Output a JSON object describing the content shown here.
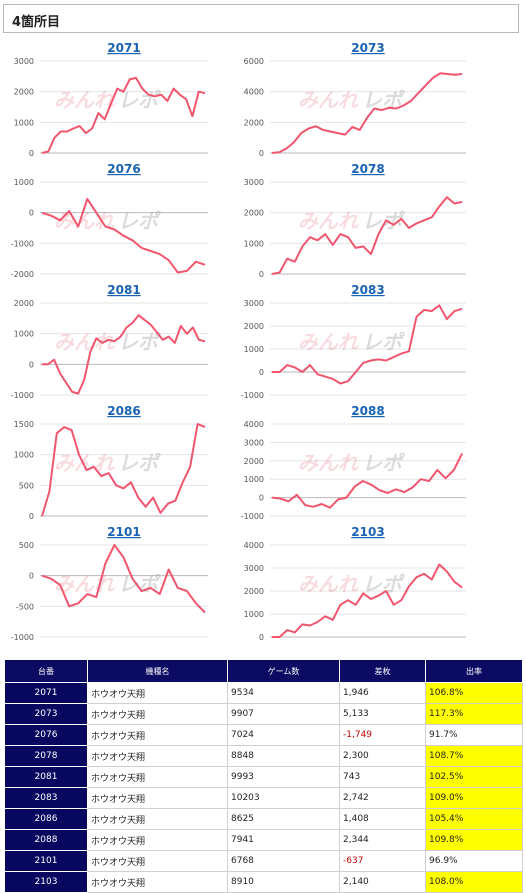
{
  "page": {
    "title": "4箇所目"
  },
  "chart_data": [
    {
      "type": "line",
      "title": "2071",
      "ylim": [
        0,
        3000
      ],
      "yticks": [
        "0",
        "1000",
        "2000",
        "3000"
      ],
      "values": [
        0,
        50,
        500,
        700,
        700,
        800,
        880,
        650,
        800,
        1300,
        1100,
        1600,
        2100,
        2000,
        2400,
        2450,
        2100,
        1900,
        1850,
        1900,
        1700,
        2100,
        1900,
        1750,
        1200,
        2000,
        1950
      ]
    },
    {
      "type": "line",
      "title": "2073",
      "ylim": [
        0,
        6000
      ],
      "yticks": [
        "0",
        "2000",
        "4000",
        "6000"
      ],
      "values": [
        0,
        50,
        300,
        700,
        1300,
        1600,
        1750,
        1500,
        1400,
        1300,
        1200,
        1700,
        1500,
        2300,
        2900,
        2800,
        2950,
        2900,
        3100,
        3400,
        3900,
        4400,
        4900,
        5200,
        5150,
        5100,
        5150
      ]
    },
    {
      "type": "line",
      "title": "2076",
      "ylim": [
        -2000,
        1000
      ],
      "yticks": [
        "-2000",
        "-1000",
        "0",
        "1000"
      ],
      "values": [
        0,
        -100,
        -250,
        50,
        -450,
        450,
        0,
        -450,
        -550,
        -750,
        -900,
        -1150,
        -1250,
        -1350,
        -1550,
        -1950,
        -1900,
        -1600,
        -1700
      ]
    },
    {
      "type": "line",
      "title": "2078",
      "ylim": [
        0,
        3000
      ],
      "yticks": [
        "0",
        "1000",
        "2000",
        "3000"
      ],
      "values": [
        0,
        50,
        500,
        400,
        900,
        1200,
        1100,
        1300,
        950,
        1300,
        1200,
        850,
        900,
        650,
        1300,
        1750,
        1600,
        1800,
        1500,
        1650,
        1750,
        1850,
        2200,
        2500,
        2300,
        2350
      ]
    },
    {
      "type": "line",
      "title": "2081",
      "ylim": [
        -1000,
        2000
      ],
      "yticks": [
        "-1000",
        "0",
        "1000",
        "2000"
      ],
      "values": [
        0,
        0,
        150,
        -300,
        -600,
        -900,
        -950,
        -500,
        400,
        850,
        700,
        800,
        750,
        900,
        1200,
        1350,
        1600,
        1450,
        1300,
        1050,
        800,
        900,
        700,
        1250,
        1000,
        1200,
        800,
        750
      ]
    },
    {
      "type": "line",
      "title": "2083",
      "ylim": [
        -1000,
        3000
      ],
      "yticks": [
        "-1000",
        "0",
        "1000",
        "2000",
        "3000"
      ],
      "values": [
        0,
        0,
        300,
        200,
        0,
        300,
        -100,
        -200,
        -300,
        -500,
        -400,
        0,
        400,
        500,
        550,
        500,
        650,
        800,
        900,
        2400,
        2700,
        2650,
        2900,
        2300,
        2650,
        2750
      ]
    },
    {
      "type": "line",
      "title": "2086",
      "ylim": [
        0,
        1500
      ],
      "yticks": [
        "0",
        "500",
        "1000",
        "1500"
      ],
      "values": [
        0,
        400,
        1350,
        1450,
        1400,
        1000,
        750,
        800,
        650,
        700,
        500,
        450,
        550,
        300,
        150,
        300,
        50,
        200,
        250,
        550,
        800,
        1500,
        1450
      ]
    },
    {
      "type": "line",
      "title": "2088",
      "ylim": [
        -1000,
        4000
      ],
      "yticks": [
        "-1000",
        "0",
        "1000",
        "2000",
        "3000",
        "4000"
      ],
      "values": [
        0,
        -50,
        -200,
        150,
        -400,
        -500,
        -350,
        -550,
        -100,
        0,
        600,
        900,
        700,
        400,
        250,
        450,
        300,
        550,
        1000,
        900,
        1500,
        1050,
        1500,
        2400
      ]
    },
    {
      "type": "line",
      "title": "2101",
      "ylim": [
        -1000,
        500
      ],
      "yticks": [
        "-1000",
        "-500",
        "0",
        "500"
      ],
      "values": [
        0,
        -50,
        -150,
        -500,
        -450,
        -300,
        -350,
        200,
        500,
        300,
        -50,
        -250,
        -200,
        -300,
        100,
        -200,
        -250,
        -450,
        -600
      ]
    },
    {
      "type": "line",
      "title": "2103",
      "ylim": [
        0,
        4000
      ],
      "yticks": [
        "0",
        "1000",
        "2000",
        "3000",
        "4000"
      ],
      "values": [
        0,
        0,
        300,
        200,
        550,
        500,
        650,
        900,
        750,
        1400,
        1600,
        1400,
        1900,
        1650,
        1800,
        2000,
        1400,
        1600,
        2200,
        2600,
        2750,
        2500,
        3150,
        2850,
        2400,
        2150
      ]
    }
  ],
  "table": {
    "headers": [
      "台番",
      "機種名",
      "ゲーム数",
      "差枚",
      "出率"
    ],
    "rows": [
      [
        "2071",
        "ホウオウ天翔",
        "9534",
        "1,946",
        "106.8%"
      ],
      [
        "2073",
        "ホウオウ天翔",
        "9907",
        "5,133",
        "117.3%"
      ],
      [
        "2076",
        "ホウオウ天翔",
        "7024",
        "-1,749",
        "91.7%"
      ],
      [
        "2078",
        "ホウオウ天翔",
        "8848",
        "2,300",
        "108.7%"
      ],
      [
        "2081",
        "ホウオウ天翔",
        "9993",
        "743",
        "102.5%"
      ],
      [
        "2083",
        "ホウオウ天翔",
        "10203",
        "2,742",
        "109.0%"
      ],
      [
        "2086",
        "ホウオウ天翔",
        "8625",
        "1,408",
        "105.4%"
      ],
      [
        "2088",
        "ホウオウ天翔",
        "7941",
        "2,344",
        "109.8%"
      ],
      [
        "2101",
        "ホウオウ天翔",
        "6768",
        "-637",
        "96.9%"
      ],
      [
        "2103",
        "ホウオウ天翔",
        "8910",
        "2,140",
        "108.0%"
      ]
    ]
  }
}
